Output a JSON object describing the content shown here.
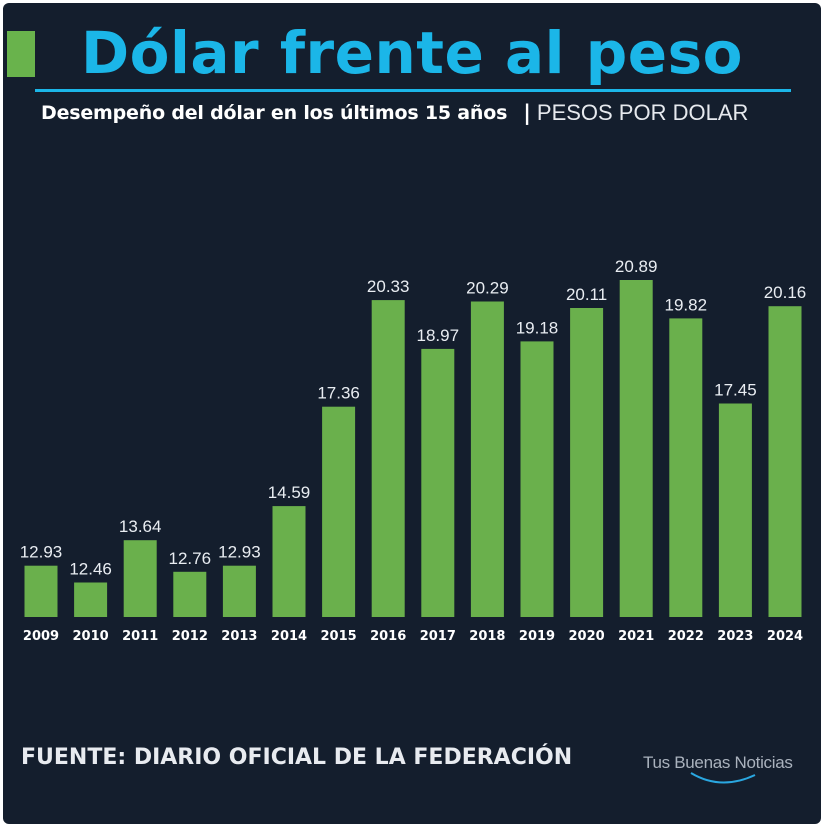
{
  "header": {
    "title": "Dólar frente al peso",
    "subtitle": "Desempeño del dólar en los últimos 15 años",
    "separator": "|",
    "unit_label": "PESOS POR DOLAR"
  },
  "footer": {
    "source": "FUENTE: DIARIO OFICIAL DE LA FEDERACIÓN",
    "brand": "Tus Buenas Noticias"
  },
  "colors": {
    "background": "#141e2d",
    "title": "#1bb6e8",
    "bar": "#6ab04c",
    "text": "#ffffff"
  },
  "chart_data": {
    "type": "bar",
    "categories": [
      "2009",
      "2010",
      "2011",
      "2012",
      "2013",
      "2014",
      "2015",
      "2016",
      "2017",
      "2018",
      "2019",
      "2020",
      "2021",
      "2022",
      "2023",
      "2024"
    ],
    "values": [
      12.93,
      12.46,
      13.64,
      12.76,
      12.93,
      14.59,
      17.36,
      20.33,
      18.97,
      20.29,
      19.18,
      20.11,
      20.89,
      19.82,
      17.45,
      20.16
    ],
    "value_labels": [
      "12.93",
      "12.46",
      "13.64",
      "12.76",
      "12.93",
      "14.59",
      "17.36",
      "20.33",
      "18.97",
      "20.29",
      "19.18",
      "20.11",
      "20.89",
      "19.82",
      "17.45",
      "20.16"
    ],
    "ylim": [
      11.5,
      20.89
    ],
    "grid": false,
    "legend": "none",
    "data_labels": "above bars"
  }
}
